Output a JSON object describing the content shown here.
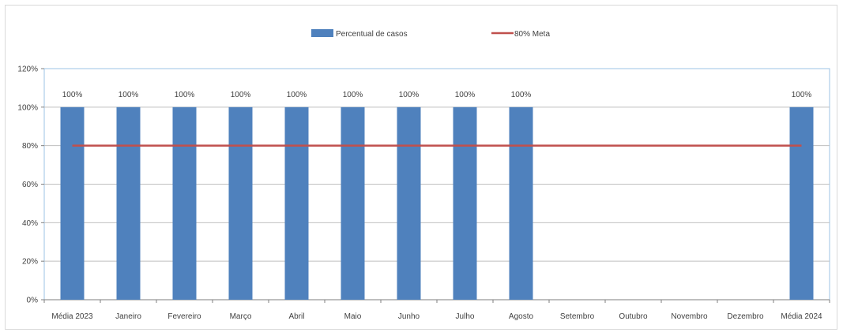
{
  "chart_data": {
    "type": "bar",
    "categories": [
      "Média 2023",
      "Janeiro",
      "Fevereiro",
      "Março",
      "Abril",
      "Maio",
      "Junho",
      "Julho",
      "Agosto",
      "Setembro",
      "Outubro",
      "Novembro",
      "Dezembro",
      "Média 2024"
    ],
    "series": [
      {
        "name": "Percentual de casos",
        "type": "bar",
        "color": "#4f81bd",
        "values": [
          100,
          100,
          100,
          100,
          100,
          100,
          100,
          100,
          100,
          null,
          null,
          null,
          null,
          100
        ],
        "data_labels": [
          "100%",
          "100%",
          "100%",
          "100%",
          "100%",
          "100%",
          "100%",
          "100%",
          "100%",
          "",
          "",
          "",
          "",
          "100%"
        ]
      },
      {
        "name": "80% Meta",
        "type": "line",
        "color": "#c0504d",
        "values": [
          80,
          80,
          80,
          80,
          80,
          80,
          80,
          80,
          80,
          80,
          80,
          80,
          80,
          80
        ]
      }
    ],
    "ylim": [
      0,
      120
    ],
    "yticks": [
      0,
      20,
      40,
      60,
      80,
      100,
      120
    ],
    "ytick_labels": [
      "0%",
      "20%",
      "40%",
      "60%",
      "80%",
      "100%",
      "120%"
    ],
    "grid": true,
    "legend_position": "top"
  }
}
